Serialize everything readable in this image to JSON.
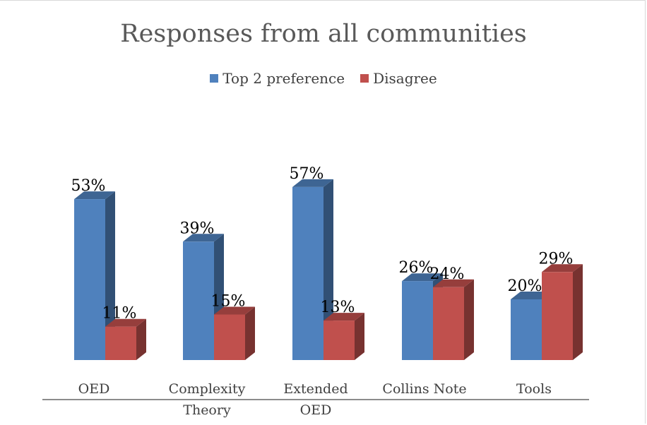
{
  "chart_data": {
    "type": "bar",
    "title": "Responses from all communities",
    "categories": [
      [
        "OED"
      ],
      [
        "Complexity",
        "Theory"
      ],
      [
        "Extended",
        "OED"
      ],
      [
        "Collins Note"
      ],
      [
        "Tools"
      ]
    ],
    "series": [
      {
        "name": "Top 2 preference",
        "color": "#4f81bd",
        "values": [
          53,
          39,
          57,
          26,
          20
        ]
      },
      {
        "name": "Disagree",
        "color": "#c0504d",
        "values": [
          11,
          15,
          13,
          24,
          29
        ]
      }
    ],
    "value_suffix": "%",
    "ylim": [
      0,
      60
    ],
    "grid": false,
    "legend_position": "top",
    "bar_style": "3d-column"
  }
}
